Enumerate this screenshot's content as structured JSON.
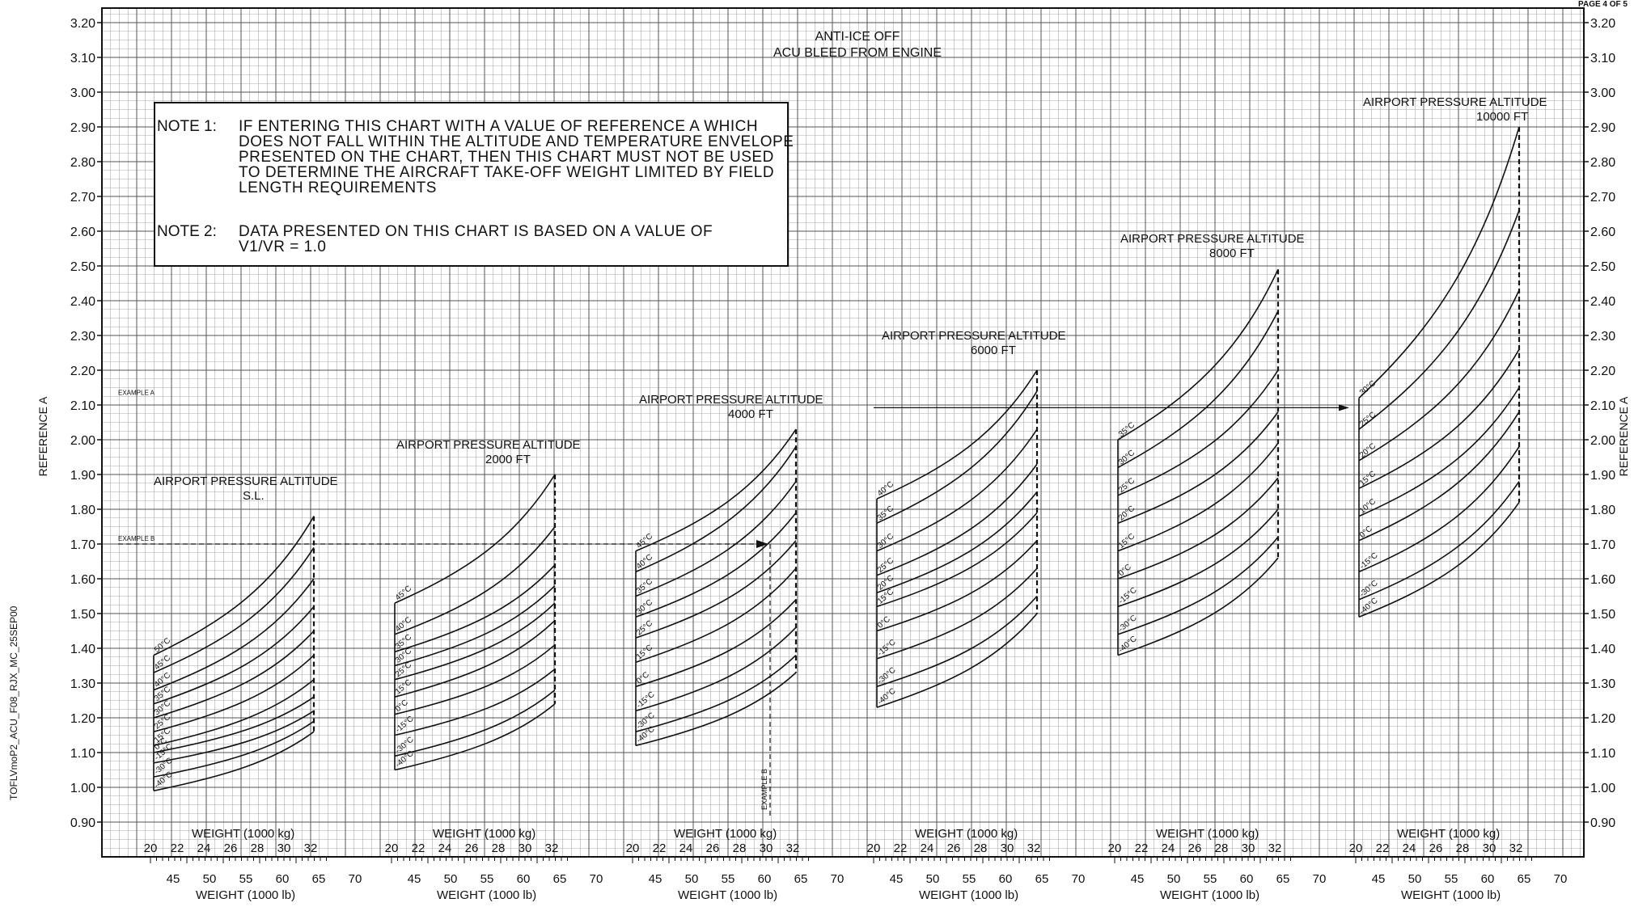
{
  "page_label": "PAGE 4 OF 5",
  "side_label": "TOFLVmoP2_ACU_F08_RJX_MC_25SEP00",
  "header": {
    "line1": "ANTI-ICE OFF",
    "line2": "ACU BLEED FROM ENGINE"
  },
  "notes": {
    "note1_label": "NOTE 1:",
    "note1_lines": [
      "IF ENTERING THIS CHART WITH A VALUE OF REFERENCE A WHICH",
      "DOES NOT FALL WITHIN THE ALTITUDE AND TEMPERATURE ENVELOPE",
      "PRESENTED ON THE CHART, THEN THIS CHART MUST NOT BE USED",
      "TO DETERMINE THE AIRCRAFT TAKE-OFF WEIGHT LIMITED BY FIELD",
      "LENGTH REQUIREMENTS"
    ],
    "note2_label": "NOTE 2:",
    "note2_line": "DATA PRESENTED ON THIS CHART IS BASED ON A VALUE OF",
    "note2_formula": "V1/VR = 1.0"
  },
  "colors": {
    "ink": "#111111",
    "paper": "#ffffff",
    "grid_minor": "#a8a8a8",
    "grid_major": "#555555"
  },
  "chart_data": {
    "type": "line",
    "ylabel_left": "REFERENCE A",
    "ylabel_right": "REFERENCE A",
    "ylim": [
      0.85,
      3.22
    ],
    "yticks": [
      "0.90",
      "1.00",
      "1.10",
      "1.20",
      "1.30",
      "1.40",
      "1.50",
      "1.60",
      "1.70",
      "1.80",
      "1.90",
      "2.00",
      "2.10",
      "2.20",
      "2.30",
      "2.40",
      "2.50",
      "2.60",
      "2.70",
      "2.80",
      "2.90",
      "3.00",
      "3.10",
      "3.20"
    ],
    "weight_kg_label": "WEIGHT (1000 kg)",
    "weight_lb_label": "WEIGHT (1000 lb)",
    "kg_ticks": [
      "20",
      "22",
      "24",
      "26",
      "28",
      "30",
      "32"
    ],
    "lb_ticks": [
      "45",
      "50",
      "55",
      "60",
      "65",
      "70"
    ],
    "examples": {
      "example_a_label": "EXAMPLE A",
      "example_a_y": 2.12,
      "example_b_label": "EXAMPLE B",
      "example_b_y": 1.7
    },
    "panels": [
      {
        "title": "AIRPORT PRESSURE ALTITUDE",
        "altitude": "S.L.",
        "temps": [
          "50°C",
          "45°C",
          "40°C",
          "35°C",
          "30°C",
          "25°C",
          "15°C",
          "0°C",
          "-15°C",
          "-30°C",
          "-40°C"
        ],
        "y_min_weight": [
          1.38,
          1.33,
          1.28,
          1.24,
          1.2,
          1.16,
          1.12,
          1.1,
          1.07,
          1.03,
          0.99
        ],
        "y_max_weight": [
          1.78,
          1.69,
          1.6,
          1.52,
          1.45,
          1.38,
          1.31,
          1.26,
          1.22,
          1.19,
          1.16
        ]
      },
      {
        "title": "AIRPORT PRESSURE ALTITUDE",
        "altitude": "2000 FT",
        "temps": [
          "45°C",
          "40°C",
          "35°C",
          "30°C",
          "25°C",
          "15°C",
          "0°C",
          "-15°C",
          "-30°C",
          "-40°C"
        ],
        "y_min_weight": [
          1.53,
          1.44,
          1.39,
          1.35,
          1.31,
          1.26,
          1.21,
          1.15,
          1.09,
          1.05
        ],
        "y_max_weight": [
          1.9,
          1.75,
          1.64,
          1.58,
          1.53,
          1.48,
          1.41,
          1.34,
          1.28,
          1.24
        ]
      },
      {
        "title": "AIRPORT PRESSURE ALTITUDE",
        "altitude": "4000 FT",
        "temps": [
          "45°C",
          "40°C",
          "35°C",
          "30°C",
          "25°C",
          "15°C",
          "0°C",
          "-15°C",
          "-30°C",
          "-40°C"
        ],
        "y_min_weight": [
          1.68,
          1.62,
          1.55,
          1.49,
          1.43,
          1.36,
          1.29,
          1.22,
          1.16,
          1.12
        ],
        "y_max_weight": [
          2.03,
          1.98,
          1.88,
          1.79,
          1.71,
          1.63,
          1.54,
          1.46,
          1.38,
          1.33
        ]
      },
      {
        "title": "AIRPORT PRESSURE ALTITUDE",
        "altitude": "6000 FT",
        "temps": [
          "40°C",
          "35°C",
          "30°C",
          "25°C",
          "20°C",
          "15°C",
          "0°C",
          "-15°C",
          "-30°C",
          "-40°C"
        ],
        "y_min_weight": [
          1.83,
          1.76,
          1.68,
          1.61,
          1.56,
          1.52,
          1.45,
          1.37,
          1.29,
          1.23
        ],
        "y_max_weight": [
          2.2,
          2.14,
          2.03,
          1.93,
          1.85,
          1.79,
          1.71,
          1.63,
          1.55,
          1.5
        ]
      },
      {
        "title": "AIRPORT PRESSURE ALTITUDE",
        "altitude": "8000 FT",
        "temps": [
          "35°C",
          "30°C",
          "25°C",
          "20°C",
          "15°C",
          "0°C",
          "-15°C",
          "-30°C",
          "-40°C"
        ],
        "y_min_weight": [
          2.0,
          1.92,
          1.84,
          1.76,
          1.68,
          1.6,
          1.52,
          1.44,
          1.38
        ],
        "y_max_weight": [
          2.49,
          2.37,
          2.2,
          2.08,
          1.99,
          1.89,
          1.8,
          1.72,
          1.66
        ]
      },
      {
        "title": "AIRPORT PRESSURE ALTITUDE",
        "altitude": "10000 FT",
        "temps": [
          "30°C",
          "25°C",
          "20°C",
          "15°C",
          "10°C",
          "0°C",
          "-15°C",
          "-30°C",
          "-40°C"
        ],
        "y_min_weight": [
          2.12,
          2.03,
          1.94,
          1.86,
          1.78,
          1.71,
          1.62,
          1.54,
          1.49
        ],
        "y_max_weight": [
          2.9,
          2.66,
          2.43,
          2.26,
          2.15,
          2.08,
          1.98,
          1.88,
          1.82
        ]
      }
    ]
  }
}
